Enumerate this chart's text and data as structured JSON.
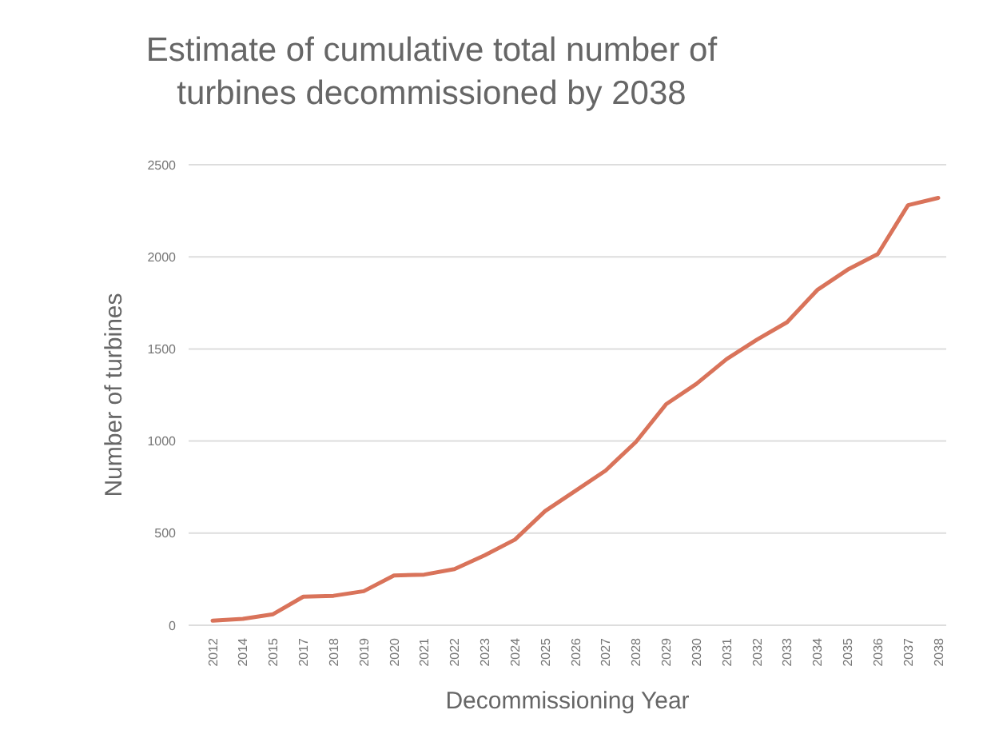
{
  "chart_data": {
    "type": "line",
    "title": "Estimate of cumulative total number of turbines decommissioned by 2038",
    "xlabel": "Decommissioning Year",
    "ylabel": "Number of turbines",
    "categories": [
      "2012",
      "2014",
      "2015",
      "2017",
      "2018",
      "2019",
      "2020",
      "2021",
      "2022",
      "2023",
      "2024",
      "2025",
      "2026",
      "2027",
      "2028",
      "2029",
      "2030",
      "2031",
      "2032",
      "2033",
      "2034",
      "2035",
      "2036",
      "2037",
      "2038"
    ],
    "series": [
      {
        "color": "#d9735a",
        "values": [
          25,
          35,
          60,
          155,
          160,
          185,
          270,
          275,
          305,
          380,
          465,
          620,
          730,
          840,
          995,
          1200,
          1310,
          1445,
          1550,
          1645,
          1820,
          1930,
          2015,
          2280,
          2320
        ]
      }
    ],
    "ylim": [
      0,
      2500
    ],
    "yticks": [
      0,
      500,
      1000,
      1500,
      2000,
      2500
    ],
    "grid": "y",
    "marker": "none",
    "line_style": "solid"
  }
}
